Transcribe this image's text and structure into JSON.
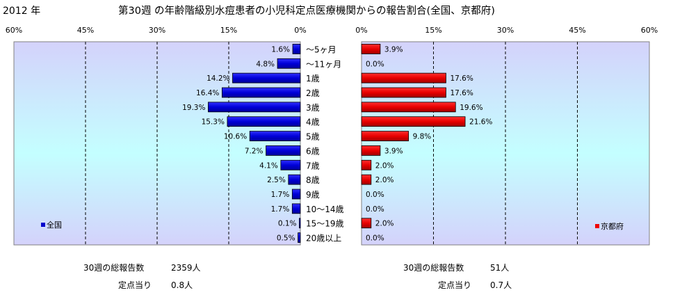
{
  "header": {
    "year": "2012 年",
    "title": "第30週 の年齢階級別水痘患者の小児科定点医療機関からの報告割合(全国、京都府)"
  },
  "footer": {
    "left": {
      "total_label": "30週の総報告数",
      "total_value": "2359人",
      "per_label": "定点当り",
      "per_value": "0.8人"
    },
    "right": {
      "total_label": "30週の総報告数",
      "total_value": "51人",
      "per_label": "定点当り",
      "per_value": "0.7人"
    }
  },
  "chart_data": {
    "type": "bar",
    "orientation": "horizontal-butterfly",
    "categories": [
      "〜5ヶ月",
      "〜11ヶ月",
      "1歳",
      "2歳",
      "3歳",
      "4歳",
      "5歳",
      "6歳",
      "7歳",
      "8歳",
      "9歳",
      "10〜14歳",
      "15〜19歳",
      "20歳以上"
    ],
    "axis_ticks": [
      "60%",
      "45%",
      "30%",
      "15%",
      "0%"
    ],
    "axis_ticks_right": [
      "0%",
      "15%",
      "30%",
      "45%",
      "60%"
    ],
    "xlim": [
      0,
      60
    ],
    "grid": true,
    "series": [
      {
        "name": "全国",
        "side": "left",
        "color": "#0000cc",
        "values": [
          1.6,
          4.8,
          14.2,
          16.4,
          19.3,
          15.3,
          10.6,
          7.2,
          4.1,
          2.5,
          1.7,
          1.7,
          0.1,
          0.5
        ],
        "labels": [
          "1.6%",
          "4.8%",
          "14.2%",
          "16.4%",
          "19.3%",
          "15.3%",
          "10.6%",
          "7.2%",
          "4.1%",
          "2.5%",
          "1.7%",
          "1.7%",
          "0.1%",
          "0.5%"
        ]
      },
      {
        "name": "京都府",
        "side": "right",
        "color": "#ee0000",
        "values": [
          3.9,
          0.0,
          17.6,
          17.6,
          19.6,
          21.6,
          9.8,
          3.9,
          2.0,
          2.0,
          0.0,
          0.0,
          2.0,
          0.0
        ],
        "labels": [
          "3.9%",
          "0.0%",
          "17.6%",
          "17.6%",
          "19.6%",
          "21.6%",
          "9.8%",
          "3.9%",
          "2.0%",
          "2.0%",
          "0.0%",
          "0.0%",
          "2.0%",
          "0.0%"
        ]
      }
    ],
    "plot_background": "gradient light-blue to cyan",
    "legend_placement": "bottom-inside"
  }
}
